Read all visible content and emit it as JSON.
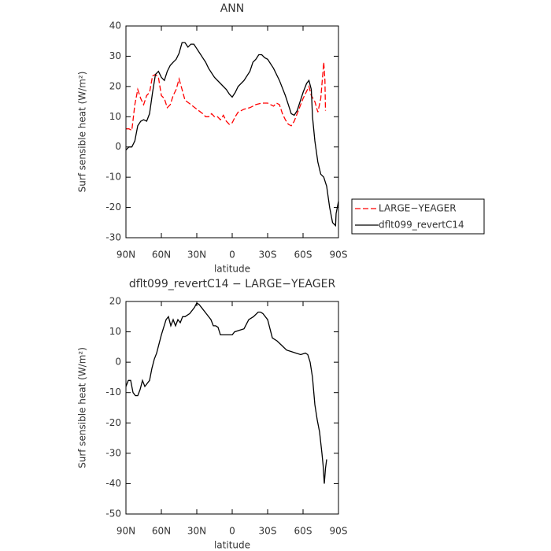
{
  "chart_data": [
    {
      "type": "line",
      "title": "ANN",
      "x_label": "latitude",
      "y_label": "Surf sensible heat (W/m²)",
      "xlim": [
        90,
        -90
      ],
      "xticks": [
        {
          "value": 90,
          "label": "90N"
        },
        {
          "value": 60,
          "label": "60N"
        },
        {
          "value": 30,
          "label": "30N"
        },
        0,
        {
          "value": -30,
          "label": "30S"
        },
        {
          "value": -60,
          "label": "60S"
        },
        {
          "value": -90,
          "label": "90S"
        }
      ],
      "ylim": [
        -30,
        40
      ],
      "yticks": [
        -30,
        -20,
        -10,
        0,
        10,
        20,
        30,
        40
      ],
      "legend": "right",
      "series": [
        {
          "name": "LARGE−YEAGER",
          "color": "#ff0000",
          "dashed": true,
          "x": [
            90,
            87.5,
            85,
            82.5,
            80,
            77.5,
            75,
            72.5,
            70,
            67.5,
            65,
            62.5,
            60,
            57.5,
            55,
            52.5,
            50,
            47.5,
            45,
            42.5,
            40,
            35,
            30,
            25,
            22.5,
            20,
            17.5,
            15,
            12.5,
            10,
            7.5,
            5,
            2.5,
            0,
            -2.5,
            -5,
            -10,
            -15,
            -20,
            -25,
            -30,
            -32.5,
            -35,
            -37.5,
            -40,
            -42.5,
            -45,
            -47.5,
            -50,
            -52.5,
            -55,
            -60,
            -65,
            -67,
            -70,
            -72.5,
            -75,
            -77.5,
            -78.5,
            -79
          ],
          "values": [
            6,
            6,
            5.5,
            14,
            19,
            16,
            14,
            17,
            18,
            23.5,
            24,
            23,
            17,
            16,
            13,
            14,
            17,
            19,
            22.5,
            19,
            15.5,
            14,
            12.5,
            11,
            10,
            10,
            11,
            10,
            10,
            9,
            10.5,
            8.5,
            7.5,
            8,
            10,
            11.5,
            12.5,
            13,
            14,
            14.5,
            14.5,
            14,
            13.5,
            14.5,
            14,
            11,
            9,
            7.5,
            7,
            8.5,
            11,
            16,
            20,
            17,
            15,
            11.5,
            16,
            28,
            22,
            12
          ]
        },
        {
          "name": "dflt099_revertC14",
          "color": "#000000",
          "dashed": false,
          "x": [
            90,
            87.5,
            85,
            82.5,
            80,
            77.5,
            75,
            72.5,
            70,
            67.5,
            65,
            62.5,
            60,
            57.5,
            55,
            52.5,
            50,
            47.5,
            45,
            42.5,
            40,
            37.5,
            35,
            32.5,
            30,
            27.5,
            25,
            22.5,
            20,
            15,
            10,
            5,
            2.5,
            0,
            -2.5,
            -5,
            -10,
            -15,
            -17.5,
            -20,
            -22.5,
            -25,
            -27.5,
            -30,
            -35,
            -40,
            -45,
            -47.5,
            -50,
            -52.5,
            -55,
            -60,
            -63,
            -65,
            -67,
            -68,
            -70,
            -72.5,
            -75,
            -77.5,
            -80,
            -82.5,
            -85,
            -87.5,
            -88,
            -90
          ],
          "values": [
            -1,
            0,
            0,
            2,
            7,
            8.5,
            9,
            8.5,
            11,
            18,
            24,
            25,
            23,
            22,
            25,
            27,
            28,
            29,
            31,
            34.5,
            34.5,
            33,
            34,
            34,
            32.5,
            31,
            29.5,
            28,
            26,
            23,
            21,
            19,
            17.5,
            16.5,
            18,
            20,
            22,
            25,
            28,
            29,
            30.5,
            30.5,
            29.5,
            29,
            26,
            22,
            17,
            14,
            11,
            10.5,
            12,
            18,
            21,
            22,
            19,
            10,
            2,
            -5,
            -9,
            -10,
            -13,
            -20,
            -25,
            -26,
            -22,
            -18
          ]
        }
      ]
    },
    {
      "type": "line",
      "title": "dflt099_revertC14 − LARGE−YEAGER",
      "x_label": "latitude",
      "y_label": "Surf sensible heat (W/m²)",
      "xlim": [
        90,
        -90
      ],
      "xticks": [
        {
          "value": 90,
          "label": "90N"
        },
        {
          "value": 60,
          "label": "60N"
        },
        {
          "value": 30,
          "label": "30N"
        },
        0,
        {
          "value": -30,
          "label": "30S"
        },
        {
          "value": -60,
          "label": "60S"
        },
        {
          "value": -90,
          "label": "90S"
        }
      ],
      "ylim": [
        -50,
        20
      ],
      "yticks": [
        -50,
        -40,
        -30,
        -20,
        -10,
        0,
        10,
        20
      ],
      "series": [
        {
          "color": "#000000",
          "dashed": false,
          "x": [
            90,
            88,
            86,
            84,
            82,
            80,
            78,
            76,
            74,
            72,
            70,
            68,
            66,
            64,
            60,
            56,
            54,
            52,
            50,
            48,
            46,
            44,
            42,
            40,
            36,
            32,
            30,
            28,
            26,
            22,
            18,
            16,
            14,
            12,
            10,
            6,
            2,
            0,
            -2,
            -6,
            -10,
            -14,
            -18,
            -22,
            -24,
            -26,
            -30,
            -34,
            -38,
            -42,
            -46,
            -50,
            -54,
            -58,
            -62,
            -64,
            -66,
            -68,
            -70,
            -72,
            -74,
            -76,
            -77,
            -78,
            -79,
            -80
          ],
          "values": [
            -8,
            -6,
            -6,
            -10,
            -11,
            -11,
            -9,
            -6,
            -8,
            -7,
            -6,
            -2,
            1,
            3,
            9,
            14,
            15,
            12,
            14,
            12,
            14,
            13,
            15,
            15,
            16,
            18,
            19.5,
            19,
            18,
            16,
            14,
            12,
            12,
            11.5,
            9,
            9,
            9,
            9,
            10,
            10.5,
            11,
            14,
            15,
            16.5,
            16.5,
            16,
            14,
            8,
            7,
            5.5,
            4,
            3.5,
            3,
            2.5,
            3,
            2.5,
            0,
            -5,
            -14,
            -19,
            -23,
            -30,
            -34,
            -40,
            -35,
            -32
          ]
        }
      ]
    }
  ]
}
